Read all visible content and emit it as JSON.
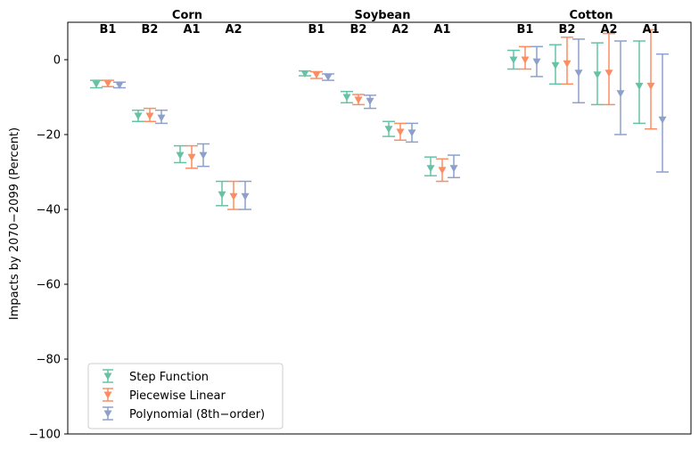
{
  "chart_data": {
    "type": "errorbar",
    "ylabel": "Impacts by 2070−2099 (Percent)",
    "ylim": [
      -100,
      10
    ],
    "yticks": [
      "0",
      "−20",
      "−40",
      "−60",
      "−80",
      "−100"
    ],
    "ytick_values": [
      0,
      -20,
      -40,
      -60,
      -80,
      -100
    ],
    "grid": false,
    "legend_position": "lower-left",
    "crops": [
      {
        "name": "Corn",
        "scenarios": [
          "B1",
          "B2",
          "A1",
          "A2"
        ],
        "values": {
          "Step Function": [
            [
              -6.5,
              -7.5,
              -5.5
            ],
            [
              -15,
              -16.5,
              -13.5
            ],
            [
              -25.5,
              -27.5,
              -23
            ],
            [
              -36,
              -39,
              -32.5
            ]
          ],
          "Piecewise Linear": [
            [
              -6.3,
              -7.2,
              -5.5
            ],
            [
              -15,
              -16.5,
              -13
            ],
            [
              -26,
              -29,
              -23
            ],
            [
              -36.5,
              -40,
              -32.5
            ]
          ],
          "Polynomial (8th−order)": [
            [
              -6.8,
              -7.5,
              -6
            ],
            [
              -15.5,
              -17,
              -13.5
            ],
            [
              -25.5,
              -28.5,
              -22.5
            ],
            [
              -36.5,
              -40,
              -32.5
            ]
          ]
        }
      },
      {
        "name": "Soybean",
        "scenarios": [
          "B1",
          "B2",
          "A2",
          "A1"
        ],
        "values": {
          "Step Function": [
            [
              -3.7,
              -4.3,
              -3
            ],
            [
              -10,
              -11.5,
              -8.5
            ],
            [
              -18.5,
              -20.5,
              -16.5
            ],
            [
              -29,
              -31,
              -26
            ]
          ],
          "Piecewise Linear": [
            [
              -4,
              -5,
              -3.2
            ],
            [
              -10.7,
              -12,
              -9.3
            ],
            [
              -19.3,
              -21.5,
              -17
            ],
            [
              -29.5,
              -32.5,
              -26.5
            ]
          ],
          "Polynomial (8th−order)": [
            [
              -4.6,
              -5.5,
              -3.8
            ],
            [
              -11,
              -13,
              -9.5
            ],
            [
              -19.5,
              -22,
              -17
            ],
            [
              -29,
              -31.5,
              -25.5
            ]
          ]
        }
      },
      {
        "name": "Cotton",
        "scenarios": [
          "B1",
          "B2",
          "A2",
          "A1"
        ],
        "values": {
          "Step Function": [
            [
              0,
              -2.5,
              2.5
            ],
            [
              -1.5,
              -6.5,
              4
            ],
            [
              -4,
              -12,
              4.5
            ],
            [
              -7,
              -17,
              5
            ]
          ],
          "Piecewise Linear": [
            [
              0,
              -2.5,
              3.5
            ],
            [
              -1,
              -6.5,
              6
            ],
            [
              -3.5,
              -12,
              7
            ],
            [
              -7,
              -18.5,
              8
            ]
          ],
          "Polynomial (8th−order)": [
            [
              -0.5,
              -4.5,
              3.5
            ],
            [
              -3.5,
              -11.5,
              5.5
            ],
            [
              -9,
              -20,
              5
            ],
            [
              -16,
              -30,
              1.5
            ]
          ]
        }
      }
    ],
    "series": [
      {
        "name": "Step Function",
        "color": "#66c2a5"
      },
      {
        "name": "Piecewise Linear",
        "color": "#fc8d62"
      },
      {
        "name": "Polynomial (8th−order)",
        "color": "#8da0cb"
      }
    ]
  }
}
